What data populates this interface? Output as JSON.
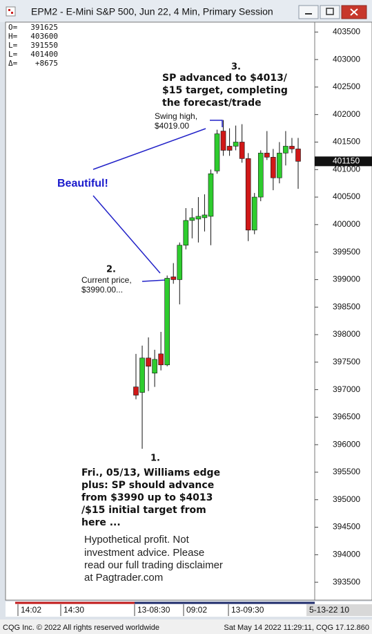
{
  "chart_data": {
    "type": "candlestick",
    "title": "EPM2 - E-Mini S&P 500, Jun 22, 4 Min, Primary Session",
    "info": [
      {
        "label": "O=",
        "value": 391625
      },
      {
        "label": "H=",
        "value": 403600
      },
      {
        "label": "L=",
        "value": 391550
      },
      {
        "label": "L=",
        "value": 401400
      },
      {
        "label": "Δ=",
        "value": "+8675"
      }
    ],
    "open": [
      397050,
      396950,
      397575,
      397300,
      397650,
      397450,
      399050,
      399000,
      399625,
      400075,
      400100,
      400125,
      400150,
      400975,
      401700,
      401425,
      401425,
      401500,
      401200,
      399900,
      400500,
      401300,
      401225,
      400850,
      401300,
      401425,
      401375
    ],
    "high": [
      397650,
      397800,
      397950,
      397725,
      398050,
      399075,
      399300,
      399675,
      400300,
      400300,
      400500,
      400550,
      401000,
      401725,
      401900,
      401750,
      401800,
      401825,
      401300,
      400575,
      401350,
      401700,
      401375,
      401500,
      401700,
      401575,
      401575
    ],
    "low": [
      396825,
      395925,
      396975,
      397050,
      397350,
      397425,
      398925,
      398550,
      399550,
      399750,
      399675,
      399875,
      399625,
      400925,
      401250,
      401250,
      401350,
      401125,
      399700,
      399825,
      400425,
      401175,
      400625,
      400750,
      401075,
      401300,
      400650
    ],
    "close": [
      396900,
      397575,
      397425,
      397550,
      397450,
      399025,
      399000,
      399625,
      400075,
      400125,
      400150,
      400175,
      400925,
      401650,
      401350,
      401350,
      401500,
      401200,
      399900,
      400500,
      401300,
      401225,
      400850,
      401300,
      401425,
      401375,
      401150
    ],
    "up_color": "#2ecc2e",
    "down_color": "#d01818",
    "current_price": 401150,
    "ylim": [
      393200,
      403680
    ],
    "yticks": [
      393500,
      394000,
      394500,
      395000,
      395500,
      396000,
      396500,
      397000,
      397500,
      398000,
      398500,
      399000,
      399500,
      400000,
      400500,
      401000,
      401500,
      402000,
      402500,
      403000,
      403500
    ],
    "xtick_labels": [
      "14:02",
      "14:30",
      "13-08:30",
      "09:02",
      "13-09:30",
      "5-13-22 10"
    ],
    "annotations": [
      {
        "label": "3.",
        "lines": [
          "SP advanced to $4013/",
          "$15 target, completing",
          "the forecast/trade"
        ]
      },
      {
        "lines": [
          "Swing high,",
          "$4019.00"
        ]
      },
      {
        "lines": [
          "Beautiful!"
        ]
      },
      {
        "label": "2.",
        "lines": [
          "Current price,",
          "$3990.00..."
        ]
      },
      {
        "label": "1.",
        "lines": [
          "Fri., 05/13, Williams edge",
          "plus: SP should advance",
          "from $3990 up to $4013",
          "/$15 initial target from",
          "here ..."
        ]
      },
      {
        "lines": [
          "Hypothetical profit. Not",
          "investment advice. Please",
          "read our full trading disclaimer",
          "at Pagtrader.com"
        ]
      }
    ]
  },
  "footer": {
    "left": "CQG Inc. © 2022 All rights reserved worldwide",
    "right": "Sat May 14 2022 11:29:11, CQG 17.12.860"
  }
}
